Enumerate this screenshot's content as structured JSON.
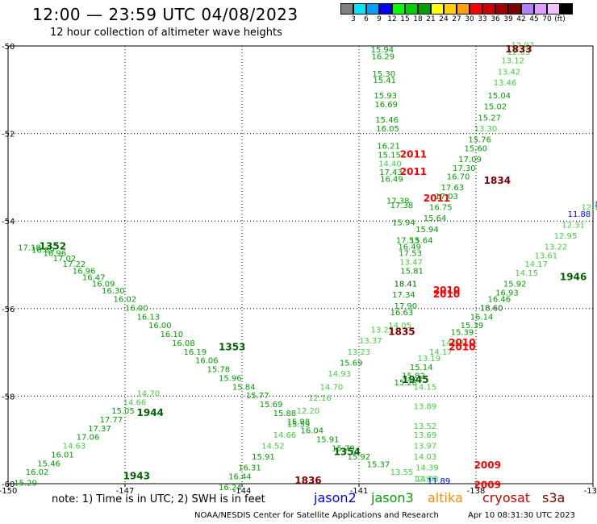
{
  "header": {
    "title": "12:00 — 23:59 UTC 04/08/2023",
    "subtitle": "12 hour collection of altimeter wave heights"
  },
  "colorbar": {
    "colors": [
      "#808080",
      "#00e8ff",
      "#00a0ff",
      "#0000ff",
      "#00ff00",
      "#00d000",
      "#00a000",
      "#ffff00",
      "#ffd000",
      "#ffa000",
      "#ff0000",
      "#d00000",
      "#a00000",
      "#800000",
      "#b080ff",
      "#e0a0ff",
      "#f0c0ff",
      "#000000"
    ],
    "labels": [
      "3",
      "6",
      "9",
      "12",
      "15",
      "18",
      "21",
      "24",
      "27",
      "30",
      "33",
      "36",
      "39",
      "42",
      "45",
      "70",
      "(ft)"
    ]
  },
  "chart_data": {
    "type": "scatter",
    "title": "12:00 — 23:59 UTC 04/08/2023",
    "subtitle": "12 hour collection of altimeter wave heights",
    "xlim": [
      -150,
      -135
    ],
    "ylim": [
      -60,
      -50
    ],
    "xticks": [
      "-150",
      "-147",
      "-144",
      "-141",
      "-138",
      "-135"
    ],
    "yticks": [
      "-50",
      "-52",
      "-54",
      "-56",
      "-58",
      "-60"
    ],
    "grid": true,
    "track_a": [
      {
        "x": -149.75,
        "y": -54.67,
        "v": "17.18"
      },
      {
        "x": -149.4,
        "y": -54.72,
        "v": "16.89"
      },
      {
        "x": -149.1,
        "y": -54.8,
        "v": "16.96"
      },
      {
        "x": -148.85,
        "y": -54.92,
        "v": "17.02"
      },
      {
        "x": -148.6,
        "y": -55.05,
        "v": "17.22"
      },
      {
        "x": -148.35,
        "y": -55.2,
        "v": "16.96"
      },
      {
        "x": -148.1,
        "y": -55.35,
        "v": "16.47"
      },
      {
        "x": -147.85,
        "y": -55.5,
        "v": "16.09"
      },
      {
        "x": -147.6,
        "y": -55.65,
        "v": "16.30"
      },
      {
        "x": -147.3,
        "y": -55.85,
        "v": "16.02"
      },
      {
        "x": -147.0,
        "y": -56.05,
        "v": "16.00"
      },
      {
        "x": -146.7,
        "y": -56.25,
        "v": "16.13"
      },
      {
        "x": -146.4,
        "y": -56.45,
        "v": "16.00"
      },
      {
        "x": -146.1,
        "y": -56.65,
        "v": "16.10"
      },
      {
        "x": -145.8,
        "y": -56.85,
        "v": "16.08"
      },
      {
        "x": -145.5,
        "y": -57.05,
        "v": "16.19"
      },
      {
        "x": -145.2,
        "y": -57.25,
        "v": "16.06"
      },
      {
        "x": -144.9,
        "y": -57.45,
        "v": "15.78"
      },
      {
        "x": -144.6,
        "y": -57.65,
        "v": "15.96"
      },
      {
        "x": -144.25,
        "y": -57.85,
        "v": "15.84"
      },
      {
        "x": -143.9,
        "y": -58.05,
        "v": "15.77"
      },
      {
        "x": -143.55,
        "y": -58.25,
        "v": "15.69"
      },
      {
        "x": -143.2,
        "y": -58.45,
        "v": "15.88"
      },
      {
        "x": -142.85,
        "y": -58.65,
        "v": "15.98"
      },
      {
        "x": -142.5,
        "y": -58.85,
        "v": "16.04"
      },
      {
        "x": -142.1,
        "y": -59.05,
        "v": "15.91"
      },
      {
        "x": -141.7,
        "y": -59.25,
        "v": "15.79"
      },
      {
        "x": -141.3,
        "y": -59.45,
        "v": "15.92"
      },
      {
        "x": -140.8,
        "y": -59.62,
        "v": "15.37"
      },
      {
        "x": -140.2,
        "y": -59.8,
        "v": "13.55"
      },
      {
        "x": -139.6,
        "y": -59.95,
        "v": "12.94"
      }
    ],
    "track_b": [
      {
        "x": -140.7,
        "y": -50.15,
        "v": "15.94"
      },
      {
        "x": -140.68,
        "y": -50.3,
        "v": "16.29"
      },
      {
        "x": -140.66,
        "y": -50.7,
        "v": "15.30"
      },
      {
        "x": -140.64,
        "y": -50.85,
        "v": "15.41"
      },
      {
        "x": -140.62,
        "y": -51.2,
        "v": "15.93"
      },
      {
        "x": -140.6,
        "y": -51.4,
        "v": "16.69"
      },
      {
        "x": -140.58,
        "y": -51.75,
        "v": "15.46"
      },
      {
        "x": -140.56,
        "y": -51.95,
        "v": "16.05"
      },
      {
        "x": -140.54,
        "y": -52.35,
        "v": "16.21"
      },
      {
        "x": -140.52,
        "y": -52.55,
        "v": "15.15"
      },
      {
        "x": -140.5,
        "y": -52.75,
        "v": "14.40"
      },
      {
        "x": -140.48,
        "y": -52.95,
        "v": "17.43"
      },
      {
        "x": -140.46,
        "y": -53.1,
        "v": "16.49"
      },
      {
        "x": -140.3,
        "y": -53.6,
        "v": "17.38"
      },
      {
        "x": -140.2,
        "y": -53.7,
        "v": "17.38"
      },
      {
        "x": -140.15,
        "y": -54.1,
        "v": "15.94"
      },
      {
        "x": -140.05,
        "y": -54.5,
        "v": "17.53"
      },
      {
        "x": -140.0,
        "y": -54.65,
        "v": "16.49"
      },
      {
        "x": -139.98,
        "y": -54.8,
        "v": "17.53"
      },
      {
        "x": -139.96,
        "y": -55.0,
        "v": "13.47"
      },
      {
        "x": -139.94,
        "y": -55.2,
        "v": "15.81"
      },
      {
        "x": -140.1,
        "y": -55.5,
        "v": "18.41"
      },
      {
        "x": -140.15,
        "y": -55.75,
        "v": "17.34"
      },
      {
        "x": -140.1,
        "y": -56.0,
        "v": "17.90"
      },
      {
        "x": -140.2,
        "y": -56.15,
        "v": "16.63"
      },
      {
        "x": -140.25,
        "y": -56.45,
        "v": "14.05"
      },
      {
        "x": -140.7,
        "y": -56.55,
        "v": "13.25"
      },
      {
        "x": -141.0,
        "y": -56.8,
        "v": "13.37"
      },
      {
        "x": -141.3,
        "y": -57.05,
        "v": "13.23"
      },
      {
        "x": -141.5,
        "y": -57.3,
        "v": "15.69"
      },
      {
        "x": -141.8,
        "y": -57.55,
        "v": "14.93"
      },
      {
        "x": -142.0,
        "y": -57.85,
        "v": "14.70"
      },
      {
        "x": -142.3,
        "y": -58.1,
        "v": "12.16"
      },
      {
        "x": -142.6,
        "y": -58.4,
        "v": "12.20"
      },
      {
        "x": -142.85,
        "y": -58.7,
        "v": "15.59"
      },
      {
        "x": -143.2,
        "y": -58.95,
        "v": "14.66"
      },
      {
        "x": -143.5,
        "y": -59.2,
        "v": "14.52"
      },
      {
        "x": -143.75,
        "y": -59.45,
        "v": "15.91"
      },
      {
        "x": -144.1,
        "y": -59.7,
        "v": "16.31"
      },
      {
        "x": -144.35,
        "y": -59.9,
        "v": "16.44"
      },
      {
        "x": -144.6,
        "y": -60.15,
        "v": "16.24"
      }
    ],
    "track_c": [
      {
        "x": -137.1,
        "y": -50.05,
        "v": "12.97"
      },
      {
        "x": -137.2,
        "y": -50.2,
        "v": "12.63"
      },
      {
        "x": -137.35,
        "y": -50.4,
        "v": "13.12"
      },
      {
        "x": -137.45,
        "y": -50.65,
        "v": "13.42"
      },
      {
        "x": -137.55,
        "y": -50.9,
        "v": "13.46"
      },
      {
        "x": -137.7,
        "y": -51.2,
        "v": "15.04"
      },
      {
        "x": -137.8,
        "y": -51.45,
        "v": "15.02"
      },
      {
        "x": -137.95,
        "y": -51.7,
        "v": "15.27"
      },
      {
        "x": -138.05,
        "y": -51.95,
        "v": "13.30"
      },
      {
        "x": -138.2,
        "y": -52.2,
        "v": "15.76"
      },
      {
        "x": -138.3,
        "y": -52.4,
        "v": "15.60"
      },
      {
        "x": -138.45,
        "y": -52.65,
        "v": "17.09"
      },
      {
        "x": -138.6,
        "y": -52.85,
        "v": "17.30"
      },
      {
        "x": -138.75,
        "y": -53.05,
        "v": "16.70"
      },
      {
        "x": -138.9,
        "y": -53.3,
        "v": "17.63"
      },
      {
        "x": -139.05,
        "y": -53.5,
        "v": "17.03"
      },
      {
        "x": -139.2,
        "y": -53.75,
        "v": "16.75"
      },
      {
        "x": -139.35,
        "y": -54.0,
        "v": "15.64"
      },
      {
        "x": -139.55,
        "y": -54.25,
        "v": "15.94"
      },
      {
        "x": -139.7,
        "y": -54.5,
        "v": "15.64"
      }
    ],
    "track_d": [
      {
        "x": -135.3,
        "y": -53.75,
        "v": "12.19"
      },
      {
        "x": -135.65,
        "y": -53.9,
        "v": "11.88"
      },
      {
        "x": -135.8,
        "y": -54.15,
        "v": "12.31"
      },
      {
        "x": -136.0,
        "y": -54.4,
        "v": "12.95"
      },
      {
        "x": -136.25,
        "y": -54.65,
        "v": "13.22"
      },
      {
        "x": -136.5,
        "y": -54.85,
        "v": "13.61"
      },
      {
        "x": -136.75,
        "y": -55.05,
        "v": "14.17"
      },
      {
        "x": -137.0,
        "y": -55.25,
        "v": "14.15"
      },
      {
        "x": -137.3,
        "y": -55.5,
        "v": "15.92"
      },
      {
        "x": -137.5,
        "y": -55.7,
        "v": "16.93"
      },
      {
        "x": -137.7,
        "y": -55.85,
        "v": "16.46"
      },
      {
        "x": -137.9,
        "y": -56.05,
        "v": "18.60"
      },
      {
        "x": -138.15,
        "y": -56.25,
        "v": "16.14"
      },
      {
        "x": -138.4,
        "y": -56.45,
        "v": "15.39"
      },
      {
        "x": -138.65,
        "y": -56.6,
        "v": "15.39"
      },
      {
        "x": -138.9,
        "y": -56.85,
        "v": "14.93"
      },
      {
        "x": -139.2,
        "y": -57.05,
        "v": "14.17"
      },
      {
        "x": -139.5,
        "y": -57.2,
        "v": "13.19"
      },
      {
        "x": -139.7,
        "y": -57.4,
        "v": "15.14"
      },
      {
        "x": -139.9,
        "y": -57.6,
        "v": "15.82"
      },
      {
        "x": -140.1,
        "y": -57.75,
        "v": "15.28"
      }
    ],
    "track_e": [
      {
        "x": -149.85,
        "y": -60.05,
        "v": "15.29"
      },
      {
        "x": -149.55,
        "y": -59.8,
        "v": "16.02"
      },
      {
        "x": -149.25,
        "y": -59.6,
        "v": "15.46"
      },
      {
        "x": -148.9,
        "y": -59.4,
        "v": "16.01"
      },
      {
        "x": -148.6,
        "y": -59.2,
        "v": "14.63"
      },
      {
        "x": -148.25,
        "y": -59.0,
        "v": "17.06"
      },
      {
        "x": -147.95,
        "y": -58.8,
        "v": "17.37"
      },
      {
        "x": -147.65,
        "y": -58.6,
        "v": "17.77"
      },
      {
        "x": -147.35,
        "y": -58.4,
        "v": "15.05"
      },
      {
        "x": -147.05,
        "y": -58.2,
        "v": "14.66"
      },
      {
        "x": -146.7,
        "y": -58.0,
        "v": "14.70"
      }
    ],
    "track_f": [
      {
        "x": -139.6,
        "y": -57.85,
        "v": "14.15"
      },
      {
        "x": -139.6,
        "y": -58.3,
        "v": "13.89"
      },
      {
        "x": -139.6,
        "y": -58.75,
        "v": "13.52"
      },
      {
        "x": -139.6,
        "y": -58.95,
        "v": "13.69"
      },
      {
        "x": -139.6,
        "y": -59.2,
        "v": "13.97"
      },
      {
        "x": -139.6,
        "y": -59.45,
        "v": "14.03"
      },
      {
        "x": -139.55,
        "y": -59.7,
        "v": "14.39"
      },
      {
        "x": -139.55,
        "y": -59.95,
        "v": "14.03"
      },
      {
        "x": -139.25,
        "y": -60.0,
        "v": "11.89"
      }
    ],
    "annotations": [
      {
        "x": -149.2,
        "y": -54.65,
        "t": "1352",
        "c": "#006400"
      },
      {
        "x": -144.6,
        "y": -56.95,
        "t": "1353",
        "c": "#006400"
      },
      {
        "x": -141.65,
        "y": -59.35,
        "t": "1354",
        "c": "#006400"
      },
      {
        "x": -146.7,
        "y": -58.45,
        "t": "1944",
        "c": "#006400"
      },
      {
        "x": -147.05,
        "y": -59.9,
        "t": "1943",
        "c": "#006400"
      },
      {
        "x": -139.9,
        "y": -57.7,
        "t": "1945",
        "c": "#006400"
      },
      {
        "x": -135.85,
        "y": -55.35,
        "t": "1946",
        "c": "#006400"
      },
      {
        "x": -139.95,
        "y": -52.55,
        "t": "2011",
        "c": "#ff0000"
      },
      {
        "x": -139.95,
        "y": -52.95,
        "t": "2011",
        "c": "#ff0000"
      },
      {
        "x": -139.35,
        "y": -53.55,
        "t": "2011",
        "c": "#ff0000"
      },
      {
        "x": -139.1,
        "y": -55.65,
        "t": "2010",
        "c": "#ff0000"
      },
      {
        "x": -139.1,
        "y": -55.75,
        "t": "2010",
        "c": "#ff0000"
      },
      {
        "x": -138.7,
        "y": -56.85,
        "t": "2010",
        "c": "#ff0000"
      },
      {
        "x": -138.7,
        "y": -56.95,
        "t": "2010",
        "c": "#ff0000"
      },
      {
        "x": -138.05,
        "y": -59.65,
        "t": "2009",
        "c": "#ff0000"
      },
      {
        "x": -138.05,
        "y": -60.1,
        "t": "2009",
        "c": "#ff0000"
      },
      {
        "x": -137.25,
        "y": -50.15,
        "t": "1833",
        "c": "#800000"
      },
      {
        "x": -137.8,
        "y": -53.15,
        "t": "1834",
        "c": "#800000"
      },
      {
        "x": -140.25,
        "y": -56.6,
        "t": "1835",
        "c": "#800000"
      },
      {
        "x": -142.65,
        "y": -60.0,
        "t": "1836",
        "c": "#800000"
      },
      {
        "x": -134.95,
        "y": -53.7,
        "t": "8",
        "c": "#00a0ff"
      }
    ]
  },
  "footer": {
    "note": "note: 1) Time is in UTC; 2) SWH is in feet",
    "credit": "NOAA/NESDIS Center for Satellite Applications and Research",
    "timestamp": "Apr 10 08:31:30 UTC 2023"
  },
  "legend": {
    "items": [
      {
        "label": "jason2",
        "color": "#0000ff"
      },
      {
        "label": "jason3",
        "color": "#00a000"
      },
      {
        "label": "altika",
        "color": "#ff8c00"
      },
      {
        "label": "cryosat",
        "color": "#d00000"
      },
      {
        "label": "s3a",
        "color": "#800000"
      }
    ]
  }
}
